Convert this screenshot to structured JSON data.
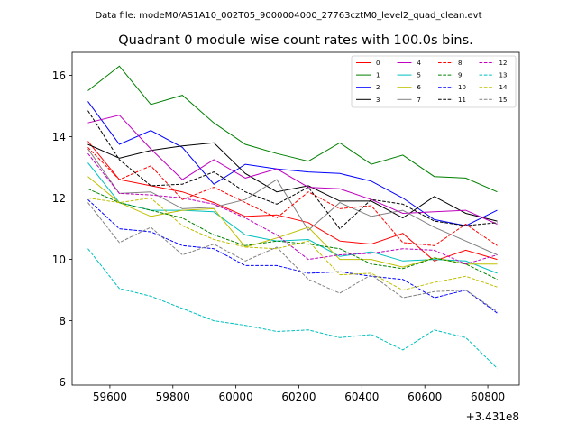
{
  "chart_data": {
    "type": "line",
    "suptitle": "Data file: modeM0/AS1A10_002T05_9000004000_27763cztM0_level2_quad_clean.evt",
    "title": "Quadrant 0 module wise count rates with 100.0s bins.",
    "xlabel": "",
    "ylabel": "",
    "x_offset_label": "+3.431e8",
    "xlim": [
      59480,
      60900
    ],
    "ylim": [
      5.9,
      16.75
    ],
    "xticks": [
      59600,
      59800,
      60000,
      60200,
      60400,
      60600,
      60800
    ],
    "yticks": [
      6,
      8,
      10,
      12,
      14,
      16
    ],
    "x": [
      59530,
      59630,
      59730,
      59830,
      59930,
      60030,
      60130,
      60230,
      60330,
      60430,
      60530,
      60630,
      60730,
      60830
    ],
    "legend_position": "upper right",
    "series": [
      {
        "name": "0",
        "color": "#ff0000",
        "dash": "solid",
        "values": [
          13.85,
          12.6,
          12.4,
          12.2,
          11.85,
          11.4,
          11.45,
          11.2,
          10.6,
          10.5,
          10.85,
          9.95,
          10.3,
          10.0
        ]
      },
      {
        "name": "1",
        "color": "#008000",
        "dash": "solid",
        "values": [
          15.5,
          16.3,
          15.05,
          15.35,
          14.45,
          13.75,
          13.45,
          13.2,
          13.8,
          13.1,
          13.4,
          12.7,
          12.65,
          12.2
        ]
      },
      {
        "name": "2",
        "color": "#0000ff",
        "dash": "solid",
        "values": [
          15.15,
          13.75,
          14.2,
          13.65,
          12.45,
          13.1,
          12.95,
          12.85,
          12.8,
          12.55,
          12.0,
          11.3,
          11.1,
          11.6
        ]
      },
      {
        "name": "3",
        "color": "#000000",
        "dash": "solid",
        "values": [
          13.75,
          13.3,
          13.55,
          13.7,
          13.8,
          12.8,
          12.2,
          12.4,
          11.9,
          11.9,
          11.35,
          12.05,
          11.5,
          11.25
        ]
      },
      {
        "name": "4",
        "color": "#bf00bf",
        "dash": "solid",
        "values": [
          14.45,
          14.7,
          13.6,
          12.6,
          13.25,
          12.65,
          12.95,
          12.35,
          12.3,
          11.95,
          11.5,
          11.55,
          11.6,
          11.15
        ]
      },
      {
        "name": "5",
        "color": "#00bfbf",
        "dash": "solid",
        "values": [
          13.15,
          11.85,
          11.6,
          11.6,
          11.55,
          10.8,
          10.6,
          10.65,
          10.1,
          10.25,
          9.95,
          10.0,
          9.95,
          9.55
        ]
      },
      {
        "name": "6",
        "color": "#bfbf00",
        "dash": "solid",
        "values": [
          12.7,
          11.85,
          11.4,
          11.6,
          11.65,
          10.4,
          10.7,
          11.05,
          10.0,
          10.0,
          9.75,
          10.05,
          9.85,
          9.85
        ]
      },
      {
        "name": "7",
        "color": "#808080",
        "dash": "solid",
        "values": [
          13.6,
          12.15,
          12.2,
          11.65,
          11.7,
          11.95,
          12.6,
          10.95,
          11.85,
          11.4,
          11.6,
          11.05,
          10.6,
          10.15
        ]
      },
      {
        "name": "8",
        "color": "#ff0000",
        "dash": "dashed",
        "values": [
          13.65,
          12.6,
          13.05,
          11.95,
          12.35,
          11.85,
          11.35,
          12.2,
          11.65,
          11.75,
          10.55,
          10.45,
          11.15,
          10.45
        ]
      },
      {
        "name": "9",
        "color": "#008000",
        "dash": "dashed",
        "values": [
          12.3,
          11.85,
          11.6,
          11.35,
          10.8,
          10.45,
          10.6,
          10.5,
          10.35,
          9.85,
          9.7,
          10.05,
          9.85,
          9.35
        ]
      },
      {
        "name": "10",
        "color": "#0000ff",
        "dash": "dashed",
        "values": [
          11.95,
          11.0,
          10.9,
          10.45,
          10.35,
          9.8,
          9.8,
          9.55,
          9.6,
          9.45,
          9.35,
          8.75,
          9.0,
          8.25
        ]
      },
      {
        "name": "11",
        "color": "#000000",
        "dash": "dashed",
        "values": [
          14.85,
          13.25,
          12.4,
          12.45,
          12.85,
          12.2,
          11.8,
          12.35,
          11.0,
          11.95,
          11.8,
          11.25,
          11.1,
          11.2
        ]
      },
      {
        "name": "12",
        "color": "#bf00bf",
        "dash": "dashed",
        "values": [
          13.45,
          12.15,
          12.1,
          12.0,
          11.8,
          11.35,
          10.8,
          10.0,
          10.15,
          10.2,
          10.35,
          10.3,
          9.85,
          10.15
        ]
      },
      {
        "name": "13",
        "color": "#00bfbf",
        "dash": "dashed",
        "values": [
          10.35,
          9.05,
          8.8,
          8.4,
          8.0,
          7.85,
          7.65,
          7.7,
          7.45,
          7.55,
          7.05,
          7.7,
          7.45,
          6.45
        ]
      },
      {
        "name": "14",
        "color": "#bfbf00",
        "dash": "dashed",
        "values": [
          12.0,
          11.85,
          12.0,
          11.1,
          10.65,
          10.4,
          10.35,
          10.6,
          9.5,
          9.55,
          9.0,
          9.25,
          9.45,
          9.1
        ]
      },
      {
        "name": "15",
        "color": "#808080",
        "dash": "dashed",
        "values": [
          11.85,
          10.55,
          11.05,
          10.15,
          10.5,
          9.95,
          10.4,
          9.35,
          8.9,
          9.5,
          8.75,
          8.95,
          9.0,
          8.3
        ]
      }
    ]
  }
}
